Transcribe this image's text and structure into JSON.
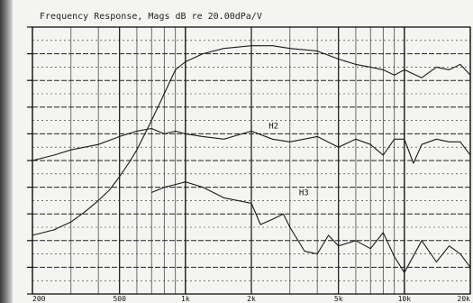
{
  "chart_data": {
    "type": "line",
    "title": "Frequency Response, Mags dB re 20.00dPa/V",
    "xscale": "log",
    "xlim": [
      200,
      20000
    ],
    "ylim": [
      0,
      100
    ],
    "x_ticks": [
      {
        "value": 200,
        "label": "200"
      },
      {
        "value": 500,
        "label": "500"
      },
      {
        "value": 1000,
        "label": "1k"
      },
      {
        "value": 2000,
        "label": "2k"
      },
      {
        "value": 5000,
        "label": "5k"
      },
      {
        "value": 10000,
        "label": "10k"
      },
      {
        "value": 20000,
        "label": "20k"
      }
    ],
    "grid": true,
    "series": [
      {
        "name": "",
        "x": [
          200,
          250,
          300,
          350,
          400,
          450,
          500,
          550,
          600,
          700,
          800,
          900,
          1000,
          1200,
          1500,
          2000,
          2500,
          3000,
          4000,
          5000,
          6000,
          7000,
          8000,
          9000,
          10000,
          12000,
          14000,
          16000,
          18000,
          20000
        ],
        "y": [
          22,
          24,
          27,
          31,
          35,
          39,
          44,
          49,
          54,
          65,
          75,
          84,
          87,
          90,
          92,
          93,
          93,
          92,
          91,
          88,
          86,
          85,
          84,
          82,
          84,
          81,
          85,
          84,
          86,
          82
        ]
      },
      {
        "name": "H2",
        "x": [
          200,
          250,
          300,
          400,
          500,
          600,
          700,
          800,
          900,
          1000,
          1200,
          1500,
          2000,
          2500,
          3000,
          4000,
          5000,
          6000,
          7000,
          8000,
          9000,
          10000,
          11000,
          12000,
          14000,
          16000,
          18000,
          20000
        ],
        "y": [
          50,
          52,
          54,
          56,
          59,
          61,
          62,
          60,
          61,
          60,
          59,
          58,
          61,
          58,
          57,
          59,
          55,
          58,
          56,
          52,
          58,
          58,
          49,
          56,
          58,
          57,
          57,
          52
        ]
      },
      {
        "name": "H3",
        "x": [
          700,
          800,
          900,
          1000,
          1200,
          1500,
          2000,
          2200,
          2500,
          2800,
          3000,
          3500,
          4000,
          4500,
          5000,
          6000,
          7000,
          8000,
          9000,
          10000,
          12000,
          14000,
          16000,
          18000,
          20000
        ],
        "y": [
          38,
          40,
          41,
          42,
          40,
          36,
          34,
          26,
          28,
          30,
          25,
          16,
          15,
          22,
          18,
          20,
          17,
          23,
          14,
          8,
          20,
          12,
          18,
          15,
          10
        ]
      }
    ]
  }
}
